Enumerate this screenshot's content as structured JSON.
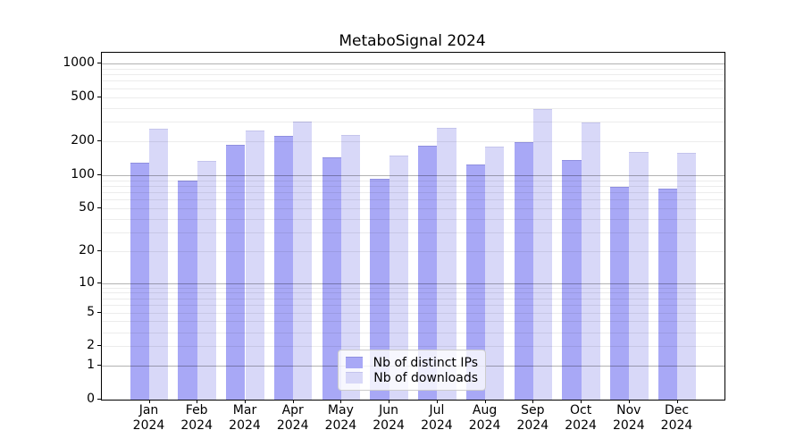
{
  "chart_data": {
    "type": "bar",
    "title": "MetaboSignal 2024",
    "categories": [
      "Jan",
      "Feb",
      "Mar",
      "Apr",
      "May",
      "Jun",
      "Jul",
      "Aug",
      "Sep",
      "Oct",
      "Nov",
      "Dec"
    ],
    "category_year": "2024",
    "series": [
      {
        "name": "Nb of distinct IPs",
        "color": "#a8a8f6",
        "edge_color": "#8f8fdf",
        "values": [
          130,
          90,
          187,
          224,
          144,
          93,
          185,
          124,
          198,
          136,
          79,
          76
        ]
      },
      {
        "name": "Nb of downloads",
        "color": "#d8d8f8",
        "edge_color": "#c4c4ec",
        "values": [
          260,
          134,
          250,
          301,
          228,
          150,
          266,
          180,
          390,
          298,
          162,
          158
        ]
      }
    ],
    "y_scale": "log10(1+x)",
    "ylim": [
      0,
      1250
    ],
    "y_ticks": [
      0,
      1,
      2,
      5,
      10,
      20,
      50,
      100,
      200,
      500,
      1000
    ],
    "y_major_gridlines": [
      1,
      10,
      100,
      1000
    ],
    "grid": true,
    "legend_position": "lower center",
    "background_color": "#ffffff",
    "axis_color": "#000000"
  }
}
